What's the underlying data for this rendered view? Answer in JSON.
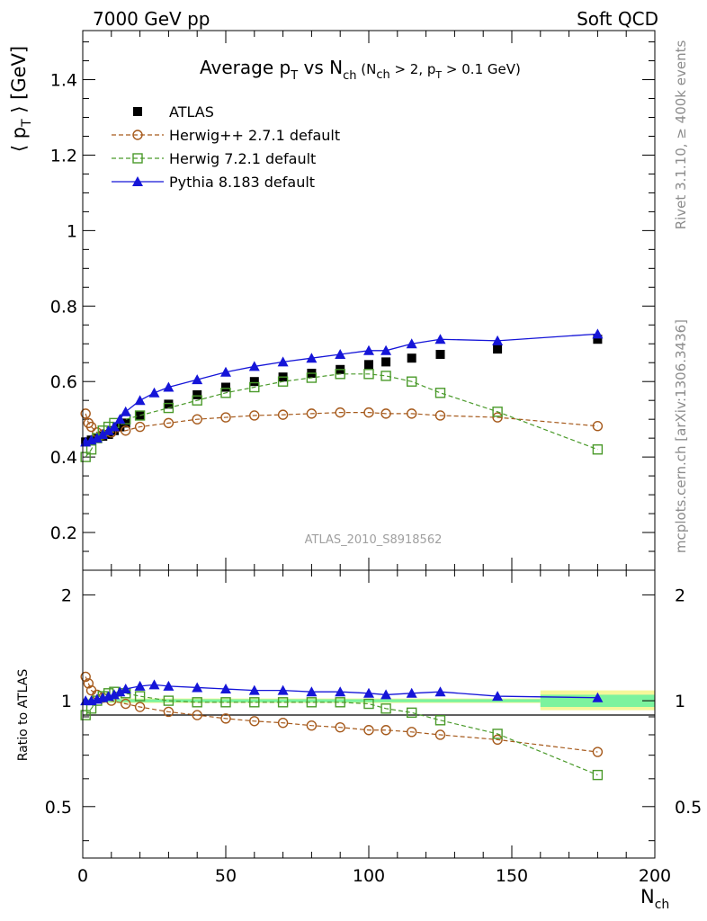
{
  "header": {
    "left": "7000 GeV pp",
    "right": "Soft QCD",
    "side_top": "Rivet 3.1.10, ≥ 400k events",
    "side_bottom": "mcplots.cern.ch [arXiv:1306.3436]",
    "analysis": "ATLAS_2010_S8918562"
  },
  "title": {
    "main": "Average p",
    "main_sub": "T",
    "vs": " vs N",
    "vs_sub": "ch",
    "cut_open": " (N",
    "cut_sub1": "ch",
    "cut_mid": " > 2, p",
    "cut_sub2": "T",
    "cut_close": " > 0.1 GeV)"
  },
  "colors": {
    "atlas": "#000000",
    "herwigpp": "#a65a1c",
    "herwig7": "#4a9a2a",
    "pythia": "#1515d8",
    "band_inner": "#7cf39e",
    "band_outer": "#f5f79a"
  },
  "chart_data": [
    {
      "type": "scatter",
      "panel": "main",
      "ylabel": "⟨ p_T ⟩ [GeV]",
      "ylabel_parts": {
        "open": "⟨ p",
        "sub": "T",
        "close": " ⟩  [GeV]"
      },
      "xlim": [
        0,
        200
      ],
      "ylim": [
        0.1,
        1.53
      ],
      "yticks": [
        0.2,
        0.4,
        0.6,
        0.8,
        1.0,
        1.2,
        1.4
      ],
      "ytick_labels": [
        "0.2",
        "0.4",
        "0.6",
        "0.8",
        "1",
        "1.2",
        "1.4"
      ],
      "legend": [
        {
          "key": "atlas",
          "label": "ATLAS"
        },
        {
          "key": "herwigpp",
          "label": "Herwig++ 2.7.1 default"
        },
        {
          "key": "herwig7",
          "label": "Herwig 7.2.1 default"
        },
        {
          "key": "pythia",
          "label": "Pythia 8.183 default"
        }
      ],
      "series": [
        {
          "key": "atlas",
          "name": "ATLAS",
          "x": [
            1,
            3,
            5,
            7,
            9,
            11,
            13,
            15,
            20,
            30,
            40,
            50,
            60,
            70,
            80,
            90,
            100,
            106,
            115,
            125,
            145,
            180
          ],
          "y": [
            0.44,
            0.445,
            0.45,
            0.455,
            0.46,
            0.47,
            0.48,
            0.49,
            0.51,
            0.54,
            0.565,
            0.585,
            0.6,
            0.612,
            0.622,
            0.632,
            0.645,
            0.652,
            0.662,
            0.672,
            0.686,
            0.712
          ]
        },
        {
          "key": "herwigpp",
          "name": "Herwig++ 2.7.1 default",
          "x": [
            1,
            2,
            3,
            5,
            7,
            10,
            15,
            20,
            30,
            40,
            50,
            60,
            70,
            80,
            90,
            100,
            106,
            115,
            125,
            145,
            180
          ],
          "y": [
            0.515,
            0.49,
            0.48,
            0.465,
            0.46,
            0.465,
            0.47,
            0.48,
            0.49,
            0.5,
            0.505,
            0.51,
            0.512,
            0.515,
            0.518,
            0.518,
            0.515,
            0.515,
            0.51,
            0.505,
            0.482
          ]
        },
        {
          "key": "herwig7",
          "name": "Herwig 7.2.1 default",
          "x": [
            1,
            3,
            5,
            7,
            9,
            11,
            15,
            20,
            30,
            40,
            50,
            60,
            70,
            80,
            90,
            100,
            106,
            115,
            125,
            145,
            180
          ],
          "y": [
            0.4,
            0.42,
            0.45,
            0.47,
            0.48,
            0.49,
            0.5,
            0.51,
            0.53,
            0.55,
            0.57,
            0.585,
            0.6,
            0.61,
            0.62,
            0.62,
            0.615,
            0.6,
            0.57,
            0.52,
            0.42
          ]
        },
        {
          "key": "pythia",
          "name": "Pythia 8.183 default",
          "x": [
            1,
            3,
            5,
            7,
            9,
            11,
            13,
            15,
            20,
            25,
            30,
            40,
            50,
            60,
            70,
            80,
            90,
            100,
            106,
            115,
            125,
            145,
            180
          ],
          "y": [
            0.44,
            0.445,
            0.45,
            0.46,
            0.47,
            0.48,
            0.5,
            0.52,
            0.55,
            0.57,
            0.585,
            0.605,
            0.625,
            0.64,
            0.652,
            0.662,
            0.672,
            0.682,
            0.682,
            0.7,
            0.712,
            0.708,
            0.726
          ]
        }
      ]
    },
    {
      "type": "scatter",
      "panel": "ratio",
      "ylabel": "Ratio to ATLAS",
      "xlabel": "N_ch",
      "xlabel_parts": {
        "main": "N",
        "sub": "ch"
      },
      "xlim": [
        0,
        200
      ],
      "ylim": [
        0.357,
        2.35
      ],
      "yscale": "log",
      "yticks": [
        0.5,
        1,
        2
      ],
      "ytick_labels": [
        "0.5",
        "1",
        "2"
      ],
      "xticks": [
        0,
        50,
        100,
        150,
        200
      ],
      "xtick_labels": [
        "0",
        "50",
        "100",
        "150",
        "200"
      ],
      "bands": [
        {
          "x0": 0,
          "x1": 160,
          "inner": [
            0.99,
            1.01
          ],
          "outer": [
            0.985,
            1.015
          ]
        },
        {
          "x0": 160,
          "x1": 200,
          "inner": [
            0.96,
            1.04
          ],
          "outer": [
            0.94,
            1.07
          ]
        }
      ],
      "series": [
        {
          "key": "herwigpp",
          "name": "Herwig++ 2.7.1 default",
          "x": [
            1,
            2,
            3,
            5,
            7,
            10,
            15,
            20,
            30,
            40,
            50,
            60,
            70,
            80,
            90,
            100,
            106,
            115,
            125,
            145,
            180
          ],
          "y": [
            1.17,
            1.12,
            1.07,
            1.04,
            1.02,
            1.0,
            0.98,
            0.96,
            0.93,
            0.91,
            0.89,
            0.875,
            0.865,
            0.85,
            0.84,
            0.825,
            0.825,
            0.815,
            0.8,
            0.775,
            0.715
          ]
        },
        {
          "key": "herwig7",
          "name": "Herwig 7.2.1 default",
          "x": [
            1,
            3,
            5,
            7,
            9,
            11,
            15,
            20,
            30,
            40,
            50,
            60,
            70,
            80,
            90,
            100,
            106,
            115,
            125,
            145,
            180
          ],
          "y": [
            0.91,
            0.95,
            1.0,
            1.03,
            1.05,
            1.06,
            1.05,
            1.03,
            1.0,
            0.99,
            0.99,
            0.99,
            0.99,
            0.99,
            0.99,
            0.98,
            0.95,
            0.925,
            0.88,
            0.805,
            0.615
          ]
        },
        {
          "key": "pythia",
          "name": "Pythia 8.183 default",
          "x": [
            1,
            3,
            5,
            7,
            9,
            11,
            13,
            15,
            20,
            25,
            30,
            40,
            50,
            60,
            70,
            80,
            90,
            100,
            106,
            115,
            125,
            145,
            180
          ],
          "y": [
            1.0,
            1.0,
            1.01,
            1.02,
            1.03,
            1.04,
            1.06,
            1.08,
            1.1,
            1.11,
            1.1,
            1.09,
            1.08,
            1.07,
            1.07,
            1.06,
            1.06,
            1.05,
            1.04,
            1.05,
            1.06,
            1.03,
            1.02
          ]
        }
      ]
    }
  ]
}
